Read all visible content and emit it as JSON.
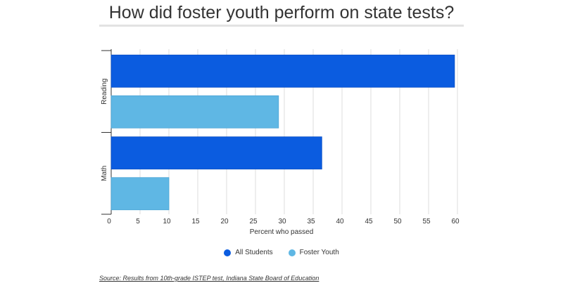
{
  "chart_data": {
    "type": "bar",
    "orientation": "horizontal",
    "title": "How did foster youth perform on state tests?",
    "xlabel": "Percent who passed",
    "ylabel": "",
    "categories": [
      "Reading",
      "Math"
    ],
    "series": [
      {
        "name": "All Students",
        "color": "#0b5ce0",
        "values": [
          59.5,
          36.5
        ]
      },
      {
        "name": "Foster Youth",
        "color": "#5fb7e4",
        "values": [
          29,
          10
        ]
      }
    ],
    "xlim": [
      0,
      60
    ],
    "xticks": [
      "0",
      "5",
      "10",
      "15",
      "20",
      "25",
      "30",
      "35",
      "40",
      "45",
      "50",
      "55",
      "60"
    ],
    "grid": true,
    "legend_position": "bottom-center",
    "source": "Source: Results from 10th-grade ISTEP test, Indiana State Board of Education"
  }
}
